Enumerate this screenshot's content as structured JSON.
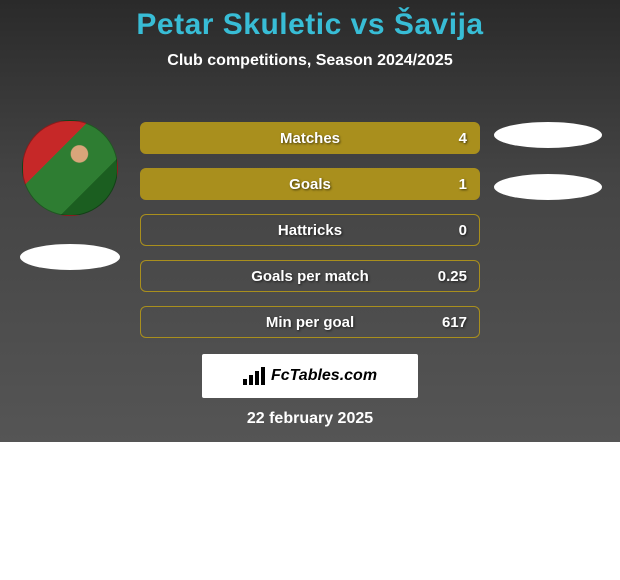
{
  "header": {
    "title": "Petar Skuletic vs Šavija",
    "subtitle": "Club competitions, Season 2024/2025"
  },
  "stats": [
    {
      "label": "Matches",
      "value": "4",
      "filled": true
    },
    {
      "label": "Goals",
      "value": "1",
      "filled": true
    },
    {
      "label": "Hattricks",
      "value": "0",
      "filled": false
    },
    {
      "label": "Goals per match",
      "value": "0.25",
      "filled": false
    },
    {
      "label": "Min per goal",
      "value": "617",
      "filled": false
    }
  ],
  "logo": {
    "text": "FcTables.com"
  },
  "date": "22 february 2025",
  "colors": {
    "accent": "#38bdd6",
    "bar_fill": "#a98f1d",
    "panel_bg_top": "#2a2a2a",
    "panel_bg_bottom": "#555555",
    "white": "#ffffff"
  }
}
